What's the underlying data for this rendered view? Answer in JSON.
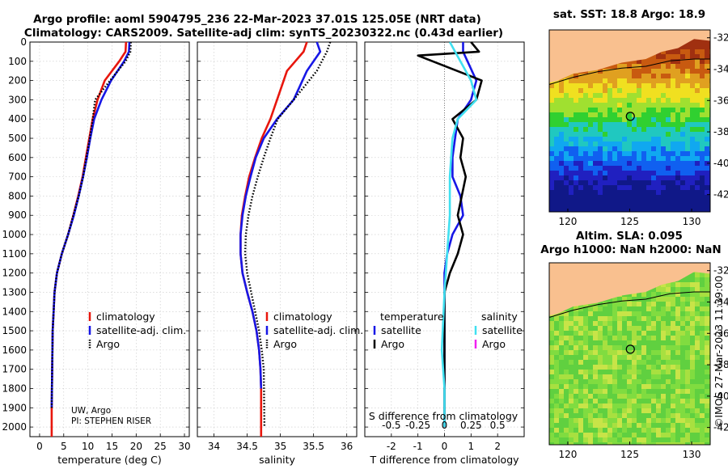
{
  "titles": {
    "line1": "Argo profile: aoml 5904795_236 22-Mar-2023 37.01S 125.05E (NRT data)",
    "line2": "Climatology: CARS2009. Satellite-adj clim: synTS_20230322.nc (0.43d earlier)",
    "map1": "sat. SST: 18.8 Argo: 18.9",
    "map2_a": "Altim. SLA: 0.095",
    "map2_b": "Argo h1000: NaN h2000: NaN",
    "credit": "©IMOS 27-Mar-2023 11:39:00"
  },
  "annotations": {
    "pi_line1": "UW, Argo",
    "pi_line2": "PI: STEPHEN RISER",
    "s_diff_label": "S difference from climatology"
  },
  "legends": {
    "temp": [
      "climatology",
      "satellite-adj. clim.",
      "Argo"
    ],
    "sal": [
      "climatology",
      "satellite-adj. clim.",
      "Argo"
    ],
    "diff_titles": [
      "temperature",
      "salinity"
    ],
    "diff_left": [
      "satellite",
      "Argo"
    ],
    "diff_right": [
      "satellite",
      "Argo"
    ]
  },
  "colors": {
    "climatology": "#e8160d",
    "satellite": "#1717e6",
    "argo": "#000000",
    "sal_satellite": "#40e0f0",
    "sal_argo": "#f020f0",
    "land": "#f9c08f"
  },
  "chart_data": [
    {
      "type": "line",
      "xlabel": "temperature (deg C)",
      "ylabel": "",
      "xlim": [
        -2,
        31
      ],
      "ylim": [
        0,
        2050
      ],
      "y_reversed": true,
      "xticks": [
        0,
        5,
        10,
        15,
        20,
        25,
        30
      ],
      "yticks": [
        0,
        100,
        200,
        300,
        400,
        500,
        600,
        700,
        800,
        900,
        1000,
        1100,
        1200,
        1300,
        1400,
        1500,
        1600,
        1700,
        1800,
        1900,
        2000
      ],
      "grid": true,
      "series": [
        {
          "name": "climatology",
          "style": "solid",
          "x": [
            17.9,
            17.8,
            16.5,
            13.5,
            12.0,
            11.0,
            10.3,
            9.6,
            8.9,
            8.0,
            7.0,
            5.9,
            4.6,
            3.6,
            3.1,
            2.9,
            2.7,
            2.6,
            2.5,
            2.5
          ],
          "y": [
            0,
            50,
            100,
            200,
            300,
            400,
            500,
            600,
            700,
            800,
            900,
            1000,
            1100,
            1200,
            1300,
            1400,
            1500,
            1700,
            1900,
            2050
          ]
        },
        {
          "name": "satellite-adj. clim.",
          "style": "solid",
          "x": [
            18.6,
            18.5,
            17.5,
            14.8,
            12.8,
            11.3,
            10.5,
            9.8,
            9.0,
            8.1,
            7.1,
            5.9,
            4.6,
            3.6,
            3.1,
            2.9,
            2.7,
            2.6,
            2.5
          ],
          "y": [
            0,
            50,
            100,
            200,
            300,
            400,
            500,
            600,
            700,
            800,
            900,
            1000,
            1100,
            1200,
            1300,
            1400,
            1500,
            1700,
            1900
          ]
        },
        {
          "name": "Argo",
          "style": "dotted",
          "x": [
            18.9,
            18.8,
            17.8,
            14.6,
            11.5,
            11.0,
            10.4,
            9.7,
            9.0,
            8.1,
            7.0,
            5.9,
            4.6,
            3.6,
            3.1,
            2.9,
            2.7,
            2.6,
            2.5
          ],
          "y": [
            0,
            50,
            100,
            200,
            300,
            400,
            500,
            600,
            700,
            800,
            900,
            1000,
            1100,
            1200,
            1300,
            1400,
            1500,
            1700,
            1900
          ]
        }
      ]
    },
    {
      "type": "line",
      "xlabel": "salinity",
      "ylabel": "",
      "xlim": [
        33.75,
        36.15
      ],
      "ylim": [
        0,
        2050
      ],
      "y_reversed": true,
      "xticks": [
        34,
        34.5,
        35,
        35.5,
        36
      ],
      "yticks": [
        0,
        100,
        200,
        300,
        400,
        500,
        600,
        700,
        800,
        900,
        1000,
        1100,
        1200,
        1300,
        1400,
        1500,
        1600,
        1700,
        1800,
        1900,
        2000
      ],
      "grid": true,
      "series": [
        {
          "name": "climatology",
          "style": "solid",
          "x": [
            35.4,
            35.35,
            35.1,
            34.95,
            34.85,
            34.72,
            34.62,
            34.53,
            34.47,
            34.42,
            34.4,
            34.4,
            34.43,
            34.5,
            34.58,
            34.64,
            34.68,
            34.7,
            34.71,
            34.71
          ],
          "y": [
            0,
            50,
            150,
            300,
            400,
            500,
            600,
            700,
            800,
            900,
            1000,
            1100,
            1200,
            1300,
            1400,
            1500,
            1600,
            1700,
            1800,
            2050
          ]
        },
        {
          "name": "satellite-adj. clim.",
          "style": "solid",
          "x": [
            35.55,
            35.6,
            35.4,
            35.2,
            34.95,
            34.75,
            34.63,
            34.55,
            34.48,
            34.43,
            34.4,
            34.4,
            34.43,
            34.5,
            34.58,
            34.64,
            34.68,
            34.7,
            34.71
          ],
          "y": [
            0,
            50,
            150,
            300,
            400,
            500,
            600,
            700,
            800,
            900,
            1000,
            1100,
            1200,
            1300,
            1400,
            1500,
            1600,
            1700,
            1800
          ]
        },
        {
          "name": "Argo",
          "style": "dotted",
          "x": [
            35.75,
            35.7,
            35.55,
            35.2,
            34.96,
            34.85,
            34.75,
            34.66,
            34.58,
            34.52,
            34.48,
            34.47,
            34.5,
            34.56,
            34.62,
            34.68,
            34.72,
            34.75,
            34.76
          ],
          "y": [
            0,
            50,
            150,
            300,
            400,
            500,
            600,
            700,
            800,
            900,
            1000,
            1100,
            1200,
            1300,
            1400,
            1500,
            1600,
            1700,
            2000
          ]
        }
      ]
    },
    {
      "type": "line",
      "xlabel": "T difference from climatology",
      "ylabel": "",
      "top_xlabel": "S difference from climatology",
      "xlim": [
        -3,
        3
      ],
      "ylim": [
        0,
        2050
      ],
      "y_reversed": true,
      "xticks": [
        -2,
        -1,
        0,
        1,
        2
      ],
      "top_xticks": [
        -0.5,
        -0.25,
        0,
        0.25,
        0.5
      ],
      "yticks": [
        0,
        100,
        200,
        300,
        400,
        500,
        600,
        700,
        800,
        900,
        1000,
        1100,
        1200,
        1300,
        1400,
        1500,
        1600,
        1700,
        1800,
        1900,
        2000
      ],
      "grid": true,
      "series": [
        {
          "name": "temperature satellite",
          "x": [
            0.7,
            0.7,
            1.2,
            1.0,
            0.5,
            0.4,
            0.3,
            0.3,
            0.6,
            0.7,
            0.3,
            0.1,
            0.0,
            0.0,
            0.0
          ],
          "y": [
            0,
            50,
            200,
            300,
            400,
            500,
            600,
            700,
            800,
            900,
            1000,
            1100,
            1200,
            1300,
            2000
          ]
        },
        {
          "name": "temperature Argo",
          "x": [
            1.0,
            1.3,
            -1.0,
            1.4,
            1.2,
            0.3,
            0.7,
            0.6,
            0.8,
            0.5,
            0.7,
            0.5,
            0.2,
            0.0,
            0.0
          ],
          "y": [
            0,
            50,
            70,
            200,
            300,
            400,
            500,
            600,
            700,
            900,
            1000,
            1100,
            1200,
            1300,
            2000
          ]
        },
        {
          "name": "salinity satellite",
          "x": [
            0.2,
            0.4,
            1.0,
            1.2,
            0.5,
            0.3,
            0.2,
            0.2,
            0.1,
            0.0,
            -0.1,
            0.0,
            0.0
          ],
          "y": [
            0,
            50,
            200,
            300,
            400,
            500,
            700,
            900,
            1100,
            1300,
            1600,
            1800,
            2000
          ]
        }
      ]
    }
  ]
}
